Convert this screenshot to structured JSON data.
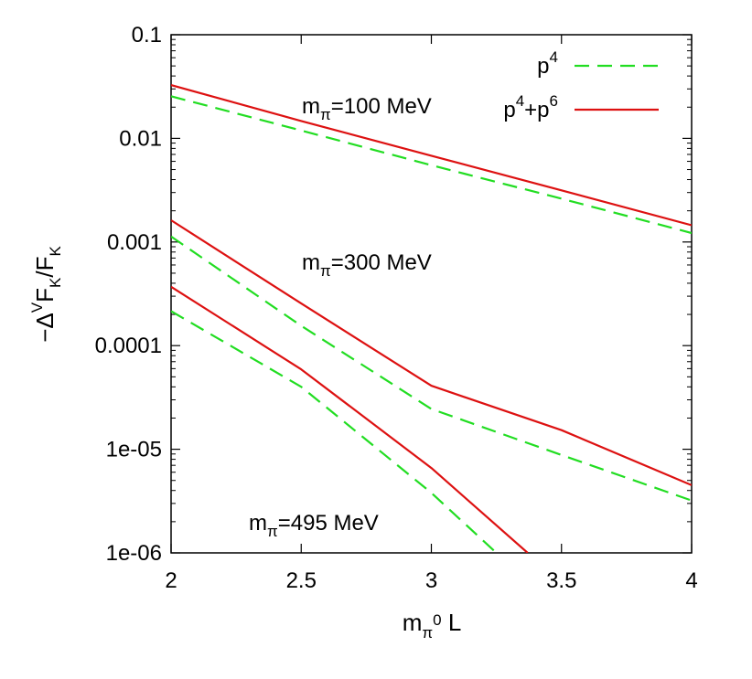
{
  "chart_data": {
    "type": "line",
    "xlabel": {
      "main": "m",
      "sub": "π",
      "sup": "0",
      "tail": " L"
    },
    "ylabel": {
      "pre": "−Δ",
      "sup": "V",
      "main": "F",
      "sub": "K",
      "slash": "/F",
      "sub2": "K"
    },
    "xlim": [
      2,
      4
    ],
    "ylim": [
      1e-06,
      0.1
    ],
    "yscale": "log",
    "x_ticks": [
      2,
      2.5,
      3,
      3.5,
      4
    ],
    "x_tick_labels": [
      "2",
      "2.5",
      "3",
      "3.5",
      "4"
    ],
    "y_ticks": [
      0.1,
      0.01,
      0.001,
      0.0001,
      1e-05,
      1e-06
    ],
    "y_tick_labels": [
      "0.1",
      "0.01",
      "0.001",
      "0.0001",
      "1e-05",
      "1e-06"
    ],
    "grid": false,
    "legend": {
      "position": "top-right",
      "entries": [
        {
          "base": "p",
          "sup": "4",
          "rest": "",
          "rest_sup": "",
          "style": "dashed",
          "color": "#22dd22"
        },
        {
          "base": "p",
          "sup": "4",
          "rest": "+p",
          "rest_sup": "6",
          "style": "solid",
          "color": "#dd1111"
        }
      ]
    },
    "annotations": [
      {
        "main": "m",
        "sub": "π",
        "tail": "=100 MeV",
        "x": 2.5,
        "y": 0.0175
      },
      {
        "main": "m",
        "sub": "π",
        "tail": "=300 MeV",
        "x": 2.5,
        "y": 0.00022
      },
      {
        "main": "m",
        "sub": "π",
        "tail": "=495 MeV",
        "x": 2.3,
        "y": 2.15e-06
      }
    ],
    "series": [
      {
        "group": "m_pi=100 MeV",
        "style": "dashed",
        "color": "#22dd22",
        "x": [
          2,
          2.5,
          3,
          3.5,
          4
        ],
        "y": [
          0.0255,
          0.0119,
          0.0055,
          0.00262,
          0.00122
        ]
      },
      {
        "group": "m_pi=100 MeV",
        "style": "solid",
        "color": "#dd1111",
        "x": [
          2,
          2.5,
          3,
          3.5,
          4
        ],
        "y": [
          0.0327,
          0.0147,
          0.0068,
          0.00315,
          0.00145
        ]
      },
      {
        "group": "m_pi=300 MeV",
        "style": "dashed",
        "color": "#22dd22",
        "x": [
          2,
          2.5,
          3,
          3.5,
          4
        ],
        "y": [
          0.00113,
          0.000155,
          2.45e-05,
          8.8e-06,
          3.2e-06
        ]
      },
      {
        "group": "m_pi=300 MeV",
        "style": "solid",
        "color": "#dd1111",
        "x": [
          2,
          2.5,
          3,
          3.5,
          4
        ],
        "y": [
          0.00162,
          0.000255,
          4.1e-05,
          1.53e-05,
          4.5e-06
        ]
      },
      {
        "group": "m_pi=495 MeV",
        "style": "dashed",
        "color": "#22dd22",
        "x": [
          2,
          2.5,
          3,
          3.25
        ],
        "y": [
          0.000215,
          4e-05,
          3.8e-06,
          1e-06
        ]
      },
      {
        "group": "m_pi=495 MeV",
        "style": "solid",
        "color": "#dd1111",
        "x": [
          2,
          2.5,
          3,
          3.37
        ],
        "y": [
          0.00037,
          5.9e-05,
          6.6e-06,
          1e-06
        ]
      }
    ]
  }
}
